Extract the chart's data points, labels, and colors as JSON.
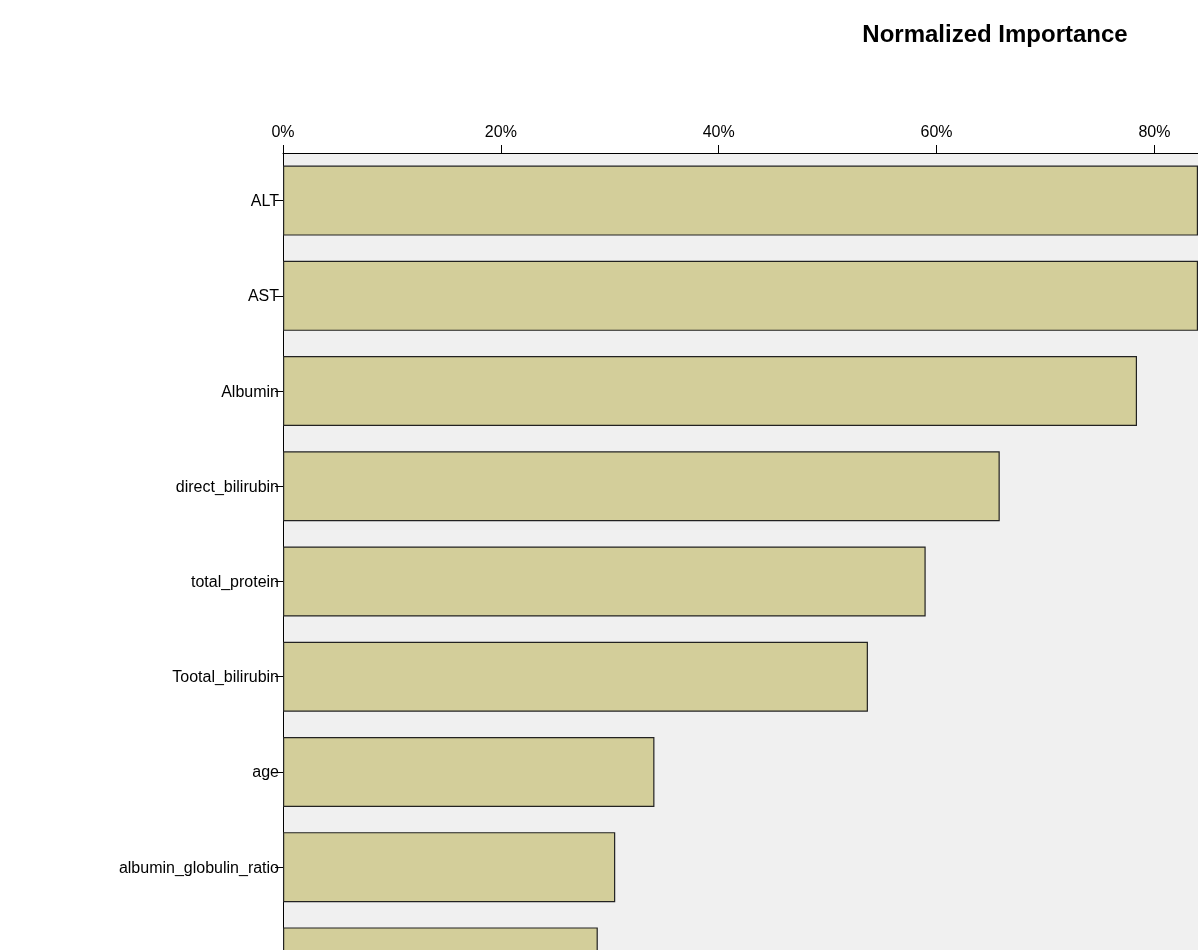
{
  "chart_data": {
    "type": "bar",
    "orientation": "horizontal",
    "title": "Normalized Importance",
    "categories": [
      "ALT",
      "AST",
      "Albumin",
      "direct_bilirubin",
      "total_protein",
      "Tootal_bilirubin",
      "age",
      "albumin_globulin_ratio",
      null
    ],
    "values": [
      84,
      84,
      78.4,
      65.8,
      59.0,
      53.7,
      34.1,
      30.5,
      28.9
    ],
    "color": "#d3ce9a",
    "xlim": [
      0,
      84
    ],
    "xticks": [
      {
        "value": 0,
        "label": "0%"
      },
      {
        "value": 20,
        "label": "20%"
      },
      {
        "value": 40,
        "label": "40%"
      },
      {
        "value": 60,
        "label": "60%"
      },
      {
        "value": 80,
        "label": "80%"
      }
    ],
    "grid": false
  }
}
